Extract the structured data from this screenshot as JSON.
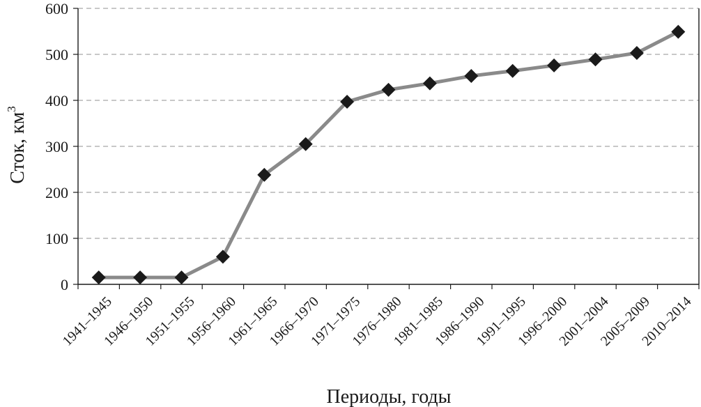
{
  "chart_data": {
    "type": "line",
    "title": "",
    "xlabel": "Периоды, годы",
    "ylabel": "Сток, км",
    "ylabel_superscript": "3",
    "ylim": [
      0,
      600
    ],
    "yticks": [
      0,
      100,
      200,
      300,
      400,
      500,
      600
    ],
    "grid": true,
    "legend": "none",
    "categories": [
      "1941–1945",
      "1946–1950",
      "1951–1955",
      "1956–1960",
      "1961–1965",
      "1966–1970",
      "1971–1975",
      "1976–1980",
      "1981–1985",
      "1986–1990",
      "1991–1995",
      "1996–2000",
      "2001–2004",
      "2005–2009",
      "2010–2014"
    ],
    "series": [
      {
        "values": [
          15,
          15,
          15,
          60,
          238,
          305,
          397,
          423,
          437,
          453,
          464,
          476,
          489,
          503,
          549
        ],
        "color": "#8a8a8a",
        "marker": "diamond",
        "marker_color": "#1a1a1a"
      }
    ]
  }
}
